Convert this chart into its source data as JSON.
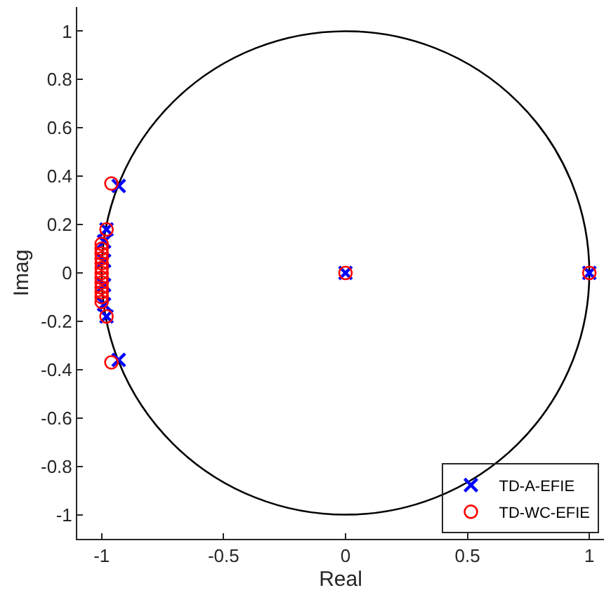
{
  "chart_data": {
    "type": "scatter",
    "xlabel": "Real",
    "ylabel": "Imag",
    "xlim": [
      -1.1,
      1.06
    ],
    "ylim": [
      -1.1,
      1.1
    ],
    "xticks": [
      -1,
      -0.5,
      0,
      0.5,
      1
    ],
    "yticks": [
      -1,
      -0.8,
      -0.6,
      -0.4,
      -0.2,
      0,
      0.2,
      0.4,
      0.6,
      0.8,
      1
    ],
    "legend": "bottom right",
    "series": [
      {
        "name": "TD-A-EFIE",
        "color": "#0000ff",
        "marker": "cross",
        "x": [
          -0.93,
          -0.93,
          -0.98,
          -0.98,
          -0.99,
          -0.99,
          -0.99,
          -0.99,
          0,
          1
        ],
        "values": [
          0.36,
          -0.36,
          0.18,
          -0.18,
          0.13,
          -0.13,
          0.05,
          -0.05,
          0,
          0
        ]
      },
      {
        "name": "TD-WC-EFIE",
        "color": "#ff0000",
        "marker": "circle",
        "x": [
          -0.96,
          -0.96,
          -0.98,
          -0.98,
          -1,
          -1,
          -1,
          -1,
          -1,
          -1,
          -1,
          -1,
          -1,
          -1,
          -1,
          -1,
          -1,
          0,
          1
        ],
        "values": [
          0.37,
          -0.37,
          0.18,
          -0.18,
          0.12,
          0.1,
          0.08,
          0.06,
          0.04,
          0.02,
          0,
          -0.02,
          -0.04,
          -0.06,
          -0.08,
          -0.1,
          -0.12,
          0,
          0
        ]
      }
    ]
  }
}
